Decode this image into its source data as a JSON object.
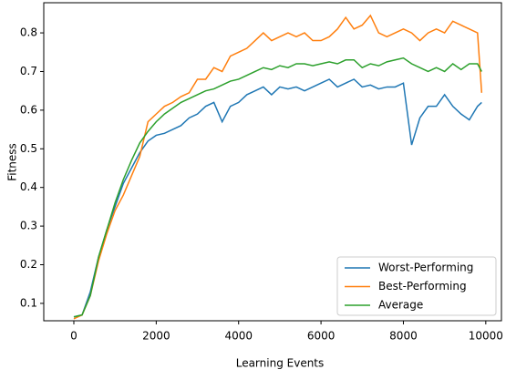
{
  "chart_data": {
    "type": "line",
    "x_label": "Learning Events",
    "y_label": "Fitness",
    "x": [
      0,
      200,
      400,
      600,
      800,
      1000,
      1200,
      1400,
      1600,
      1800,
      2000,
      2200,
      2400,
      2600,
      2800,
      3000,
      3200,
      3400,
      3600,
      3800,
      4000,
      4200,
      4400,
      4600,
      4800,
      5000,
      5200,
      5400,
      5600,
      5800,
      6000,
      6200,
      6400,
      6600,
      6800,
      7000,
      7200,
      7400,
      7600,
      7800,
      8000,
      8200,
      8400,
      8600,
      8800,
      9000,
      9200,
      9400,
      9600,
      9800,
      9900
    ],
    "series": [
      {
        "name": "Worst-Performing",
        "color": "#1f77b4",
        "values": [
          0.065,
          0.07,
          0.13,
          0.22,
          0.29,
          0.35,
          0.41,
          0.45,
          0.49,
          0.52,
          0.535,
          0.54,
          0.55,
          0.56,
          0.58,
          0.59,
          0.61,
          0.62,
          0.57,
          0.61,
          0.62,
          0.64,
          0.65,
          0.66,
          0.64,
          0.66,
          0.655,
          0.66,
          0.65,
          0.66,
          0.67,
          0.68,
          0.66,
          0.67,
          0.68,
          0.66,
          0.665,
          0.655,
          0.66,
          0.66,
          0.67,
          0.51,
          0.58,
          0.61,
          0.61,
          0.64,
          0.61,
          0.59,
          0.575,
          0.61,
          0.62
        ]
      },
      {
        "name": "Best-Performing",
        "color": "#ff7f0e",
        "values": [
          0.06,
          0.07,
          0.12,
          0.21,
          0.28,
          0.34,
          0.38,
          0.43,
          0.48,
          0.57,
          0.59,
          0.61,
          0.62,
          0.635,
          0.645,
          0.68,
          0.68,
          0.71,
          0.7,
          0.74,
          0.75,
          0.76,
          0.78,
          0.8,
          0.78,
          0.79,
          0.8,
          0.79,
          0.8,
          0.78,
          0.78,
          0.79,
          0.81,
          0.84,
          0.81,
          0.82,
          0.845,
          0.8,
          0.79,
          0.8,
          0.81,
          0.8,
          0.78,
          0.8,
          0.81,
          0.8,
          0.83,
          0.82,
          0.81,
          0.8,
          0.645
        ]
      },
      {
        "name": "Average",
        "color": "#2ca02c",
        "values": [
          0.065,
          0.07,
          0.12,
          0.22,
          0.29,
          0.36,
          0.42,
          0.47,
          0.515,
          0.545,
          0.57,
          0.59,
          0.605,
          0.62,
          0.63,
          0.64,
          0.65,
          0.655,
          0.665,
          0.675,
          0.68,
          0.69,
          0.7,
          0.71,
          0.705,
          0.715,
          0.71,
          0.72,
          0.72,
          0.715,
          0.72,
          0.725,
          0.72,
          0.73,
          0.73,
          0.71,
          0.72,
          0.715,
          0.725,
          0.73,
          0.735,
          0.72,
          0.71,
          0.7,
          0.71,
          0.7,
          0.72,
          0.705,
          0.72,
          0.72,
          0.7
        ]
      }
    ],
    "xlim": [
      -730,
      10380
    ],
    "ylim": [
      0.055,
      0.878
    ],
    "xticks": [
      0,
      2000,
      4000,
      6000,
      8000,
      10000
    ],
    "yticks": [
      0.1,
      0.2,
      0.3,
      0.4,
      0.5,
      0.6,
      0.7,
      0.8
    ],
    "legend": "lower right",
    "grid": false
  }
}
